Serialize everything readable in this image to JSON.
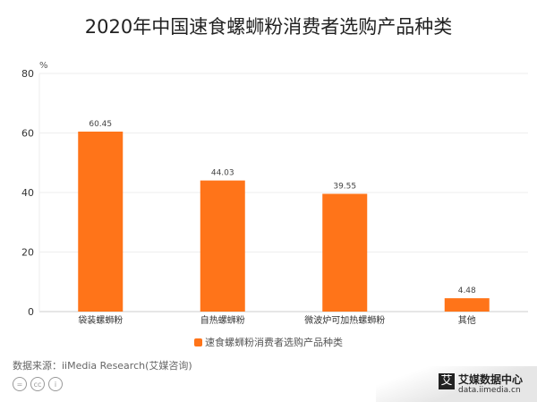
{
  "chart_data": {
    "type": "bar",
    "title": "2020年中国速食螺蛳粉消费者选购产品种类",
    "ylabel": "%",
    "categories": [
      "袋装螺蛳粉",
      "自热螺蛳粉",
      "微波炉可加热螺蛳粉",
      "其他"
    ],
    "series": [
      {
        "name": "速食螺蛳粉消费者选购产品种类",
        "values": [
          60.45,
          44.03,
          39.55,
          4.48
        ],
        "color": "#ff7419"
      }
    ],
    "value_labels": [
      "60.45",
      "44.03",
      "39.55",
      "4.48"
    ],
    "ylim": [
      0,
      80
    ],
    "yticks": [
      0,
      20,
      40,
      60,
      80
    ],
    "grid": true,
    "legend": "bottom"
  },
  "footer": {
    "source": "数据来源：iiMedia Research(艾媒咨询)",
    "brand_logo": "艾",
    "brand_name": "艾媒数据中心",
    "brand_url": "data.iimedia.cn",
    "license_icons": [
      "cc-nd-icon",
      "cc-icon",
      "cc-by-icon"
    ]
  }
}
